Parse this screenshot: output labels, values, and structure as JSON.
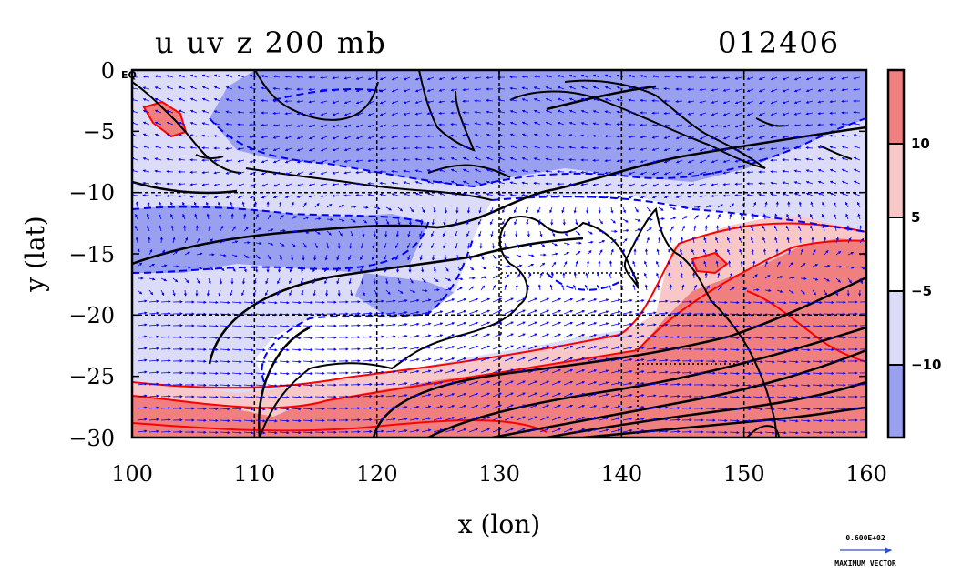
{
  "title_left": "u uv z 200 mb",
  "title_right": "012406",
  "chart_data": {
    "type": "heatmap",
    "xlabel": "x (lon)",
    "ylabel": "y (lat)",
    "xlim": [
      100,
      160
    ],
    "ylim": [
      -30,
      0
    ],
    "x_ticks": [
      "100",
      "110",
      "120",
      "130",
      "140",
      "150",
      "160"
    ],
    "y_ticks": [
      "0",
      "−5",
      "−10",
      "−15",
      "−20",
      "−25",
      "−30"
    ],
    "y_tick_values": [
      0,
      -5,
      -10,
      -15,
      -20,
      -25,
      -30
    ],
    "x_tick_values": [
      100,
      110,
      120,
      130,
      140,
      150,
      160
    ],
    "grid": true,
    "colorbar": {
      "labels": [
        "10",
        "5",
        "−5",
        "−10"
      ],
      "colors": [
        "#f08080",
        "#f8c8c8",
        "#ffffff",
        "#dcdcf8",
        "#9aa0f0"
      ]
    },
    "vector_key": {
      "value_label": "0.600E+02",
      "caption": "MAXIMUM VECTOR"
    },
    "corner_label": "EQ"
  },
  "colors": {
    "strong_positive": "#f08080",
    "weak_positive": "#f8c8c8",
    "weak_negative": "#dcdcf8",
    "strong_negative": "#9aa0f0",
    "positive_contour": "#ff0000",
    "negative_contour": "#0000ff",
    "vector": "#0000ff",
    "coast_and_height": "#000000"
  }
}
